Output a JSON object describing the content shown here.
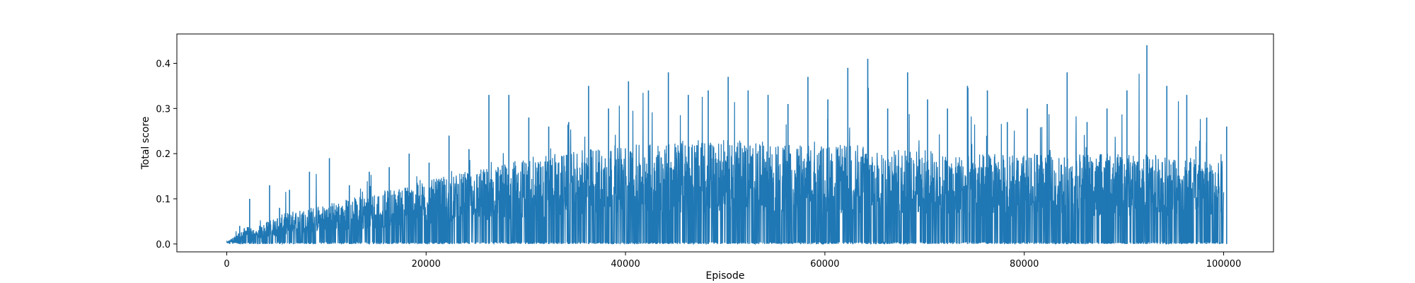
{
  "chart_data": {
    "type": "line",
    "title": "",
    "xlabel": "Episode",
    "ylabel": "Total score",
    "xlim": [
      -5000,
      105000
    ],
    "ylim": [
      -0.0175,
      0.465
    ],
    "xticks": [
      0,
      20000,
      40000,
      60000,
      80000,
      100000
    ],
    "xtick_labels": [
      "0",
      "20000",
      "40000",
      "60000",
      "80000",
      "100000"
    ],
    "yticks": [
      0.0,
      0.1,
      0.2,
      0.3,
      0.4
    ],
    "ytick_labels": [
      "0.0",
      "0.1",
      "0.2",
      "0.3",
      "0.4"
    ],
    "grid": false,
    "legend": "none",
    "series": [
      {
        "color": "#1f77b4",
        "envelope": {
          "x": [
            0,
            1000,
            2000,
            3000,
            4000,
            5000,
            6000,
            8000,
            10000,
            12000,
            14000,
            16000,
            18000,
            20000,
            22000,
            24000,
            26000,
            28000,
            30000,
            32000,
            34000,
            36000,
            38000,
            40000,
            42000,
            44000,
            46000,
            48000,
            50000,
            52000,
            54000,
            56000,
            58000,
            60000,
            62000,
            64000,
            66000,
            68000,
            70000,
            72000,
            74000,
            76000,
            78000,
            80000,
            82000,
            84000,
            86000,
            88000,
            90000,
            92000,
            94000,
            96000,
            98000,
            100000
          ],
          "max": [
            0.005,
            0.04,
            0.1,
            0.04,
            0.13,
            0.08,
            0.12,
            0.16,
            0.19,
            0.13,
            0.16,
            0.17,
            0.2,
            0.18,
            0.24,
            0.21,
            0.33,
            0.33,
            0.28,
            0.26,
            0.27,
            0.35,
            0.3,
            0.36,
            0.34,
            0.38,
            0.33,
            0.34,
            0.37,
            0.34,
            0.33,
            0.31,
            0.37,
            0.32,
            0.39,
            0.41,
            0.3,
            0.38,
            0.32,
            0.3,
            0.35,
            0.34,
            0.27,
            0.3,
            0.31,
            0.38,
            0.27,
            0.3,
            0.34,
            0.44,
            0.35,
            0.33,
            0.28,
            0.26
          ],
          "typical": [
            0.005,
            0.02,
            0.04,
            0.03,
            0.05,
            0.06,
            0.07,
            0.08,
            0.09,
            0.1,
            0.11,
            0.12,
            0.13,
            0.14,
            0.15,
            0.16,
            0.17,
            0.18,
            0.19,
            0.2,
            0.2,
            0.21,
            0.22,
            0.22,
            0.22,
            0.23,
            0.23,
            0.23,
            0.23,
            0.23,
            0.22,
            0.22,
            0.22,
            0.22,
            0.22,
            0.22,
            0.21,
            0.21,
            0.21,
            0.2,
            0.2,
            0.2,
            0.2,
            0.2,
            0.2,
            0.2,
            0.2,
            0.2,
            0.2,
            0.2,
            0.2,
            0.2,
            0.2,
            0.2
          ],
          "min": 0.0
        }
      }
    ]
  }
}
